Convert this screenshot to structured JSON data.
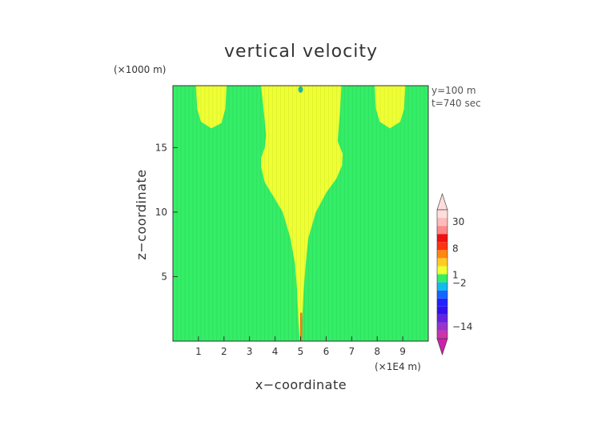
{
  "chart_data": {
    "type": "heatmap",
    "title": "vertical velocity",
    "xlabel": "x−coordinate",
    "ylabel": "z−coordinate",
    "x_unit": "(×1E4 m)",
    "y_unit": "(×1000 m)",
    "annotations": [
      "y=100 m",
      "t=740 sec"
    ],
    "xlim": [
      0,
      10
    ],
    "ylim": [
      0,
      19.8
    ],
    "x_ticks": [
      1,
      2,
      3,
      4,
      5,
      6,
      7,
      8,
      9
    ],
    "y_ticks": [
      5,
      10,
      15
    ],
    "background_region": {
      "description_value": "near-zero velocity",
      "color": "#33ee66"
    },
    "regions": [
      {
        "name": "central-plume",
        "color": "#eeff33",
        "outline": [
          [
            4.98,
            0
          ],
          [
            4.92,
            1.5
          ],
          [
            4.86,
            4
          ],
          [
            4.78,
            6
          ],
          [
            4.6,
            8
          ],
          [
            4.3,
            10
          ],
          [
            4.0,
            11
          ],
          [
            3.6,
            12.3
          ],
          [
            3.45,
            13.5
          ],
          [
            3.45,
            14.2
          ],
          [
            3.6,
            15
          ],
          [
            3.65,
            16
          ],
          [
            3.55,
            18
          ],
          [
            3.45,
            19.8
          ],
          [
            6.6,
            19.8
          ],
          [
            6.55,
            18
          ],
          [
            6.45,
            15.5
          ],
          [
            6.65,
            14.5
          ],
          [
            6.62,
            13.6
          ],
          [
            6.4,
            12.6
          ],
          [
            6.0,
            11.5
          ],
          [
            5.6,
            10
          ],
          [
            5.3,
            8
          ],
          [
            5.2,
            6
          ],
          [
            5.12,
            4
          ],
          [
            5.06,
            1.5
          ],
          [
            5.02,
            0
          ]
        ]
      },
      {
        "name": "upper-left-lobe",
        "color": "#eeff33",
        "outline": [
          [
            0.9,
            19.8
          ],
          [
            0.95,
            18
          ],
          [
            1.1,
            17
          ],
          [
            1.5,
            16.5
          ],
          [
            1.9,
            16.9
          ],
          [
            2.05,
            18
          ],
          [
            2.1,
            19.8
          ]
        ]
      },
      {
        "name": "upper-right-lobe",
        "color": "#eeff33",
        "outline": [
          [
            7.9,
            19.8
          ],
          [
            7.95,
            18
          ],
          [
            8.1,
            17
          ],
          [
            8.5,
            16.5
          ],
          [
            8.9,
            17
          ],
          [
            9.05,
            18
          ],
          [
            9.1,
            19.8
          ]
        ]
      }
    ],
    "colorbar": {
      "labels": [
        {
          "text": "30",
          "value": 30
        },
        {
          "text": "8",
          "value": 8
        },
        {
          "text": "1",
          "value": 1
        },
        {
          "text": "−2",
          "value": -2
        },
        {
          "text": "−14",
          "value": -14
        }
      ],
      "segments": [
        {
          "color": "#cc33aa"
        },
        {
          "color": "#9933cc"
        },
        {
          "color": "#6622dd"
        },
        {
          "color": "#3311ee"
        },
        {
          "color": "#2222ff"
        },
        {
          "color": "#1166ff"
        },
        {
          "color": "#11bbee"
        },
        {
          "color": "#33ee66"
        },
        {
          "color": "#eeff33"
        },
        {
          "color": "#ffcc22"
        },
        {
          "color": "#ff8811"
        },
        {
          "color": "#ff3311"
        },
        {
          "color": "#ee1111"
        },
        {
          "color": "#ff8888"
        },
        {
          "color": "#ffbbbb"
        },
        {
          "color": "#ffdddd"
        }
      ],
      "extend_min_color": "#cc22aa",
      "extend_max_color": "#ffdddd"
    }
  }
}
